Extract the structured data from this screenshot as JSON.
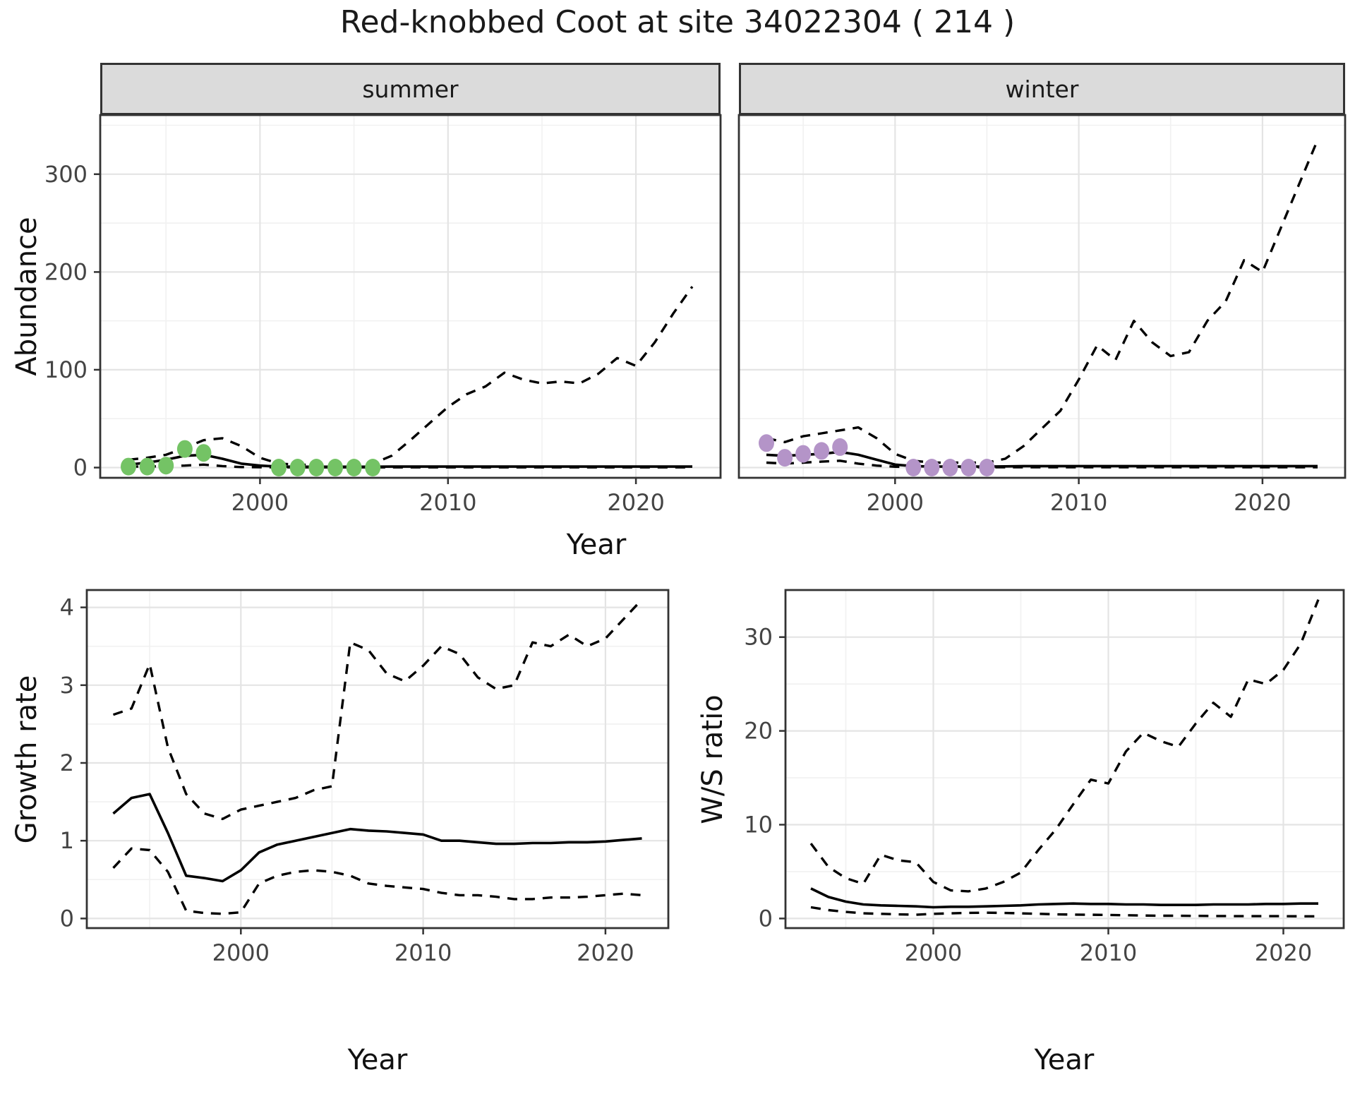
{
  "title": "Red-knobbed Coot at site 34022304 ( 214 )",
  "colors": {
    "summer_points": "#74C365",
    "winter_points": "#B494C8",
    "line": "#000000",
    "strip_fill": "#DBDBDB",
    "panel_border": "#333333",
    "grid_major": "#E4E4E4",
    "grid_minor": "#F1F1F1",
    "axis_text": "#444444",
    "text": "#1A1A1A"
  },
  "chart_data": [
    {
      "panel": "summer",
      "type": "line",
      "strip": "summer",
      "xlabel": "Year",
      "ylabel": "Abundance",
      "xlim": [
        1993,
        2023
      ],
      "ylim": [
        0,
        350
      ],
      "x_ticks": [
        2000,
        2010,
        2020
      ],
      "x_minor": [
        1995,
        2005,
        2015,
        2025
      ],
      "y_ticks": [
        0,
        100,
        200,
        300
      ],
      "y_minor": [
        50,
        150,
        250,
        350
      ],
      "grid": true,
      "legend": "none",
      "years": [
        1993,
        1994,
        1995,
        1996,
        1997,
        1998,
        1999,
        2000,
        2001,
        2002,
        2003,
        2004,
        2005,
        2006,
        2007,
        2008,
        2009,
        2010,
        2011,
        2012,
        2013,
        2014,
        2015,
        2016,
        2017,
        2018,
        2019,
        2020,
        2021,
        2022,
        2023
      ],
      "series": [
        {
          "name": "upper_95ci",
          "style": "dashed",
          "values": [
            8,
            10,
            13,
            20,
            28,
            30,
            22,
            10,
            4,
            3,
            2.5,
            2.5,
            3,
            4,
            12,
            28,
            45,
            62,
            75,
            83,
            97,
            90,
            86,
            88,
            86,
            96,
            112,
            104,
            128,
            158,
            185
          ]
        },
        {
          "name": "lower_95ci",
          "style": "dashed",
          "values": [
            1,
            1,
            1.5,
            2,
            3,
            1.5,
            0.5,
            0.3,
            0.2,
            0.2,
            0.2,
            0.2,
            0.2,
            0.2,
            0.2,
            0.2,
            0.2,
            0.2,
            0.2,
            0.2,
            0.2,
            0.2,
            0.2,
            0.2,
            0.2,
            0.2,
            0.2,
            0.2,
            0.2,
            0.2,
            0.2
          ]
        },
        {
          "name": "modelled_median",
          "style": "solid",
          "values": [
            3,
            5,
            8,
            12,
            13,
            9,
            4,
            2,
            1,
            0.8,
            0.8,
            0.8,
            0.8,
            0.8,
            1,
            1,
            1,
            1,
            1,
            1,
            1,
            1,
            1,
            1,
            1,
            1,
            1,
            1,
            1,
            1,
            1
          ]
        }
      ],
      "points": {
        "name": "observed-count",
        "color": "#74C365",
        "years": [
          1993,
          1994,
          1995,
          1996,
          1997,
          2001,
          2002,
          2003,
          2004,
          2005,
          2006
        ],
        "values": [
          1,
          1,
          2,
          19,
          15,
          0,
          0,
          0,
          0,
          0,
          0
        ]
      }
    },
    {
      "panel": "winter",
      "type": "line",
      "strip": "winter",
      "xlabel": "Year",
      "ylabel": "Abundance",
      "xlim": [
        1993,
        2023
      ],
      "ylim": [
        0,
        350
      ],
      "x_ticks": [
        2000,
        2010,
        2020
      ],
      "x_minor": [
        1995,
        2005,
        2015,
        2025
      ],
      "y_ticks": [
        0,
        100,
        200,
        300
      ],
      "y_minor": [
        50,
        150,
        250,
        350
      ],
      "grid": true,
      "legend": "none",
      "years": [
        1993,
        1994,
        1995,
        1996,
        1997,
        1998,
        1999,
        2000,
        2001,
        2002,
        2003,
        2004,
        2005,
        2006,
        2007,
        2008,
        2009,
        2010,
        2011,
        2012,
        2013,
        2014,
        2015,
        2016,
        2017,
        2018,
        2019,
        2020,
        2021,
        2022,
        2023
      ],
      "series": [
        {
          "name": "upper_95ci",
          "style": "dashed",
          "values": [
            30,
            26,
            32,
            35,
            38,
            41,
            30,
            14,
            7,
            5,
            5,
            5,
            5,
            9,
            22,
            40,
            58,
            90,
            125,
            110,
            150,
            128,
            114,
            118,
            150,
            170,
            212,
            200,
            245,
            290,
            335
          ]
        },
        {
          "name": "lower_95ci",
          "style": "dashed",
          "values": [
            5,
            4,
            5,
            6,
            7,
            4,
            2,
            0.8,
            0.4,
            0.3,
            0.3,
            0.3,
            0.3,
            0.3,
            0.3,
            0.3,
            0.3,
            0.3,
            0.3,
            0.3,
            0.3,
            0.3,
            0.3,
            0.3,
            0.3,
            0.3,
            0.3,
            0.3,
            0.3,
            0.3,
            0.3
          ]
        },
        {
          "name": "modelled_median",
          "style": "solid",
          "values": [
            13,
            12,
            13,
            14,
            16,
            13,
            8,
            3,
            1.5,
            1,
            1,
            1,
            1,
            1.2,
            1.5,
            1.5,
            1.5,
            1.5,
            1.5,
            1.5,
            1.5,
            1.5,
            1.5,
            1.5,
            1.5,
            1.5,
            1.5,
            1.5,
            1.5,
            1.5,
            1.5
          ]
        }
      ],
      "points": {
        "name": "observed-count",
        "color": "#B494C8",
        "years": [
          1993,
          1994,
          1995,
          1996,
          1997,
          2001,
          2002,
          2003,
          2004,
          2005
        ],
        "values": [
          25,
          10,
          14,
          17,
          21,
          0,
          0,
          0,
          0,
          0
        ]
      }
    },
    {
      "panel": "growth",
      "type": "line",
      "strip": "",
      "xlabel": "Year",
      "ylabel": "Growth rate",
      "xlim": [
        1993,
        2022
      ],
      "ylim": [
        0,
        4.1
      ],
      "x_ticks": [
        2000,
        2010,
        2020
      ],
      "x_minor": [
        1995,
        2005,
        2015,
        2025
      ],
      "y_ticks": [
        0,
        1,
        2,
        3,
        4
      ],
      "y_minor": [
        0.5,
        1.5,
        2.5,
        3.5
      ],
      "grid": true,
      "legend": "none",
      "years": [
        1993,
        1994,
        1995,
        1996,
        1997,
        1998,
        1999,
        2000,
        2001,
        2002,
        2003,
        2004,
        2005,
        2006,
        2007,
        2008,
        2009,
        2010,
        2011,
        2012,
        2013,
        2014,
        2015,
        2016,
        2017,
        2018,
        2019,
        2020,
        2021,
        2022
      ],
      "series": [
        {
          "name": "upper_95ci",
          "style": "dashed",
          "values": [
            2.62,
            2.7,
            3.27,
            2.2,
            1.6,
            1.35,
            1.28,
            1.4,
            1.45,
            1.5,
            1.55,
            1.65,
            1.7,
            3.55,
            3.45,
            3.15,
            3.05,
            3.25,
            3.5,
            3.4,
            3.1,
            2.95,
            3.0,
            3.55,
            3.5,
            3.65,
            3.5,
            3.6,
            3.85,
            4.1
          ]
        },
        {
          "name": "lower_95ci",
          "style": "dashed",
          "values": [
            0.65,
            0.9,
            0.88,
            0.6,
            0.1,
            0.07,
            0.06,
            0.08,
            0.45,
            0.55,
            0.6,
            0.62,
            0.6,
            0.55,
            0.45,
            0.42,
            0.4,
            0.38,
            0.33,
            0.3,
            0.3,
            0.28,
            0.25,
            0.25,
            0.27,
            0.27,
            0.28,
            0.3,
            0.32,
            0.3
          ]
        },
        {
          "name": "modelled_median",
          "style": "solid",
          "values": [
            1.35,
            1.55,
            1.6,
            1.1,
            0.55,
            0.52,
            0.48,
            0.62,
            0.85,
            0.95,
            1.0,
            1.05,
            1.1,
            1.15,
            1.13,
            1.12,
            1.1,
            1.08,
            1.0,
            1.0,
            0.98,
            0.96,
            0.96,
            0.97,
            0.97,
            0.98,
            0.98,
            0.99,
            1.01,
            1.03
          ]
        }
      ]
    },
    {
      "panel": "ws",
      "type": "line",
      "strip": "",
      "xlabel": "Year",
      "ylabel": "W/S ratio",
      "xlim": [
        1993,
        2022
      ],
      "ylim": [
        0,
        34
      ],
      "x_ticks": [
        2000,
        2010,
        2020
      ],
      "x_minor": [
        1995,
        2005,
        2015,
        2025
      ],
      "y_ticks": [
        0,
        10,
        20,
        30
      ],
      "y_minor": [
        5,
        15,
        25,
        35
      ],
      "grid": true,
      "legend": "none",
      "years": [
        1993,
        1994,
        1995,
        1996,
        1997,
        1998,
        1999,
        2000,
        2001,
        2002,
        2003,
        2004,
        2005,
        2006,
        2007,
        2008,
        2009,
        2010,
        2011,
        2012,
        2013,
        2014,
        2015,
        2016,
        2017,
        2018,
        2019,
        2020,
        2021,
        2022
      ],
      "series": [
        {
          "name": "upper_95ci",
          "style": "dashed",
          "values": [
            8.0,
            5.5,
            4.3,
            3.7,
            6.8,
            6.2,
            6.0,
            3.9,
            3.0,
            2.9,
            3.2,
            3.9,
            4.9,
            7.3,
            9.5,
            12.2,
            14.8,
            14.4,
            17.8,
            19.8,
            18.9,
            18.3,
            20.8,
            23.0,
            21.5,
            25.5,
            25.0,
            26.5,
            29.3,
            34.0
          ]
        },
        {
          "name": "lower_95ci",
          "style": "dashed",
          "values": [
            1.2,
            0.9,
            0.7,
            0.55,
            0.5,
            0.45,
            0.4,
            0.5,
            0.55,
            0.6,
            0.62,
            0.6,
            0.55,
            0.5,
            0.45,
            0.42,
            0.4,
            0.38,
            0.35,
            0.32,
            0.3,
            0.3,
            0.28,
            0.27,
            0.26,
            0.25,
            0.25,
            0.25,
            0.24,
            0.24
          ]
        },
        {
          "name": "modelled_median",
          "style": "solid",
          "values": [
            3.2,
            2.3,
            1.8,
            1.5,
            1.4,
            1.35,
            1.3,
            1.2,
            1.25,
            1.25,
            1.3,
            1.35,
            1.4,
            1.5,
            1.55,
            1.6,
            1.55,
            1.55,
            1.5,
            1.5,
            1.45,
            1.45,
            1.45,
            1.5,
            1.5,
            1.5,
            1.55,
            1.55,
            1.6,
            1.6
          ]
        }
      ]
    }
  ]
}
